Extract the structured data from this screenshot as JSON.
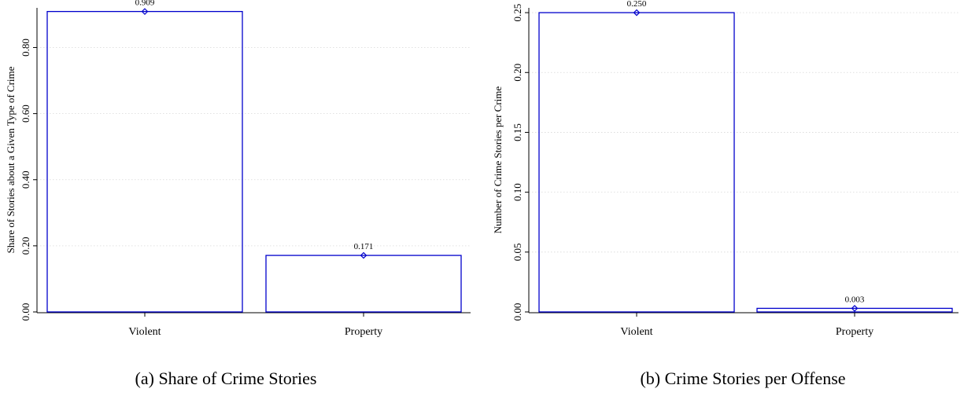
{
  "chart_data": [
    {
      "type": "bar",
      "caption": "(a) Share of Crime Stories",
      "ylabel": "Share of Stories about a Given Type of Crime",
      "categories": [
        "Violent",
        "Property"
      ],
      "values": [
        0.909,
        0.171
      ],
      "data_labels": [
        "0.909",
        "0.171"
      ],
      "ylim": [
        0,
        0.92
      ],
      "yticks": [
        0.0,
        0.2,
        0.4,
        0.6,
        0.8
      ],
      "ytick_labels": [
        "0.00",
        "0.20",
        "0.40",
        "0.60",
        "0.80"
      ],
      "grid": true,
      "bar_color": "#0000cc"
    },
    {
      "type": "bar",
      "caption": "(b) Crime Stories per Offense",
      "ylabel": "Number of Crime Stories per Crime",
      "categories": [
        "Violent",
        "Property"
      ],
      "values": [
        0.25,
        0.003
      ],
      "data_labels": [
        "0.250",
        "0.003"
      ],
      "ylim": [
        0,
        0.254
      ],
      "yticks": [
        0.0,
        0.05,
        0.1,
        0.15,
        0.2,
        0.25
      ],
      "ytick_labels": [
        "0.00",
        "0.05",
        "0.10",
        "0.15",
        "0.20",
        "0.25"
      ],
      "grid": true,
      "bar_color": "#0000cc"
    }
  ]
}
